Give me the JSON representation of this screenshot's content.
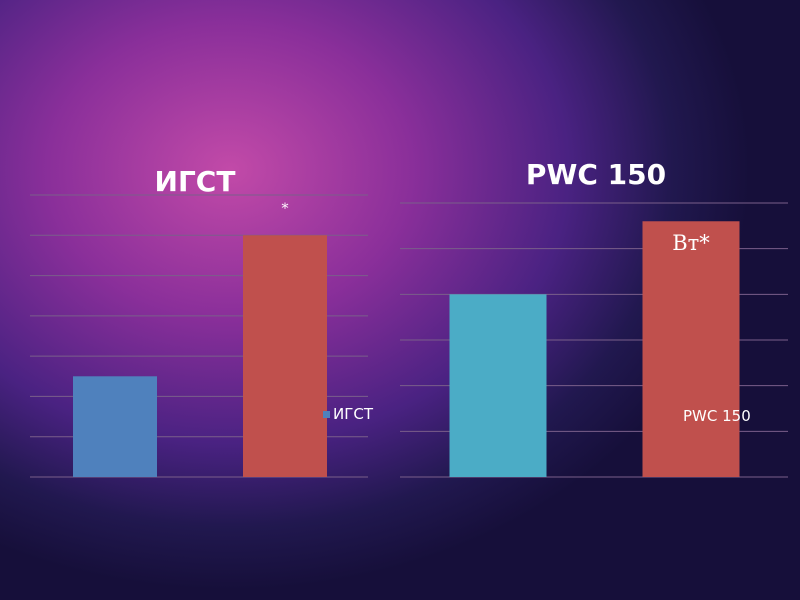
{
  "chart_data": [
    {
      "type": "bar",
      "title": "ИГСТ",
      "categories": [
        "",
        ""
      ],
      "values": [
        25,
        60
      ],
      "bar_colors": [
        "#4f81bd",
        "#c0504d"
      ],
      "ylim": [
        0,
        70
      ],
      "grid": true,
      "legend": {
        "entries": [
          "ИГСТ"
        ],
        "color": "#4f81bd",
        "placement": "right"
      },
      "annotations": [
        {
          "text": "*",
          "category_index": 1
        }
      ]
    },
    {
      "type": "bar",
      "title": "PWC 150",
      "categories": [
        "",
        ""
      ],
      "values": [
        40,
        56
      ],
      "bar_colors": [
        "#4bacc6",
        "#c0504d"
      ],
      "ylim": [
        0,
        60
      ],
      "grid": true,
      "legend": {
        "entries": [
          "PWC 150"
        ],
        "placement": "bottom-right"
      },
      "annotations": [
        {
          "text": "Вт*",
          "category_index": 1
        }
      ]
    }
  ]
}
